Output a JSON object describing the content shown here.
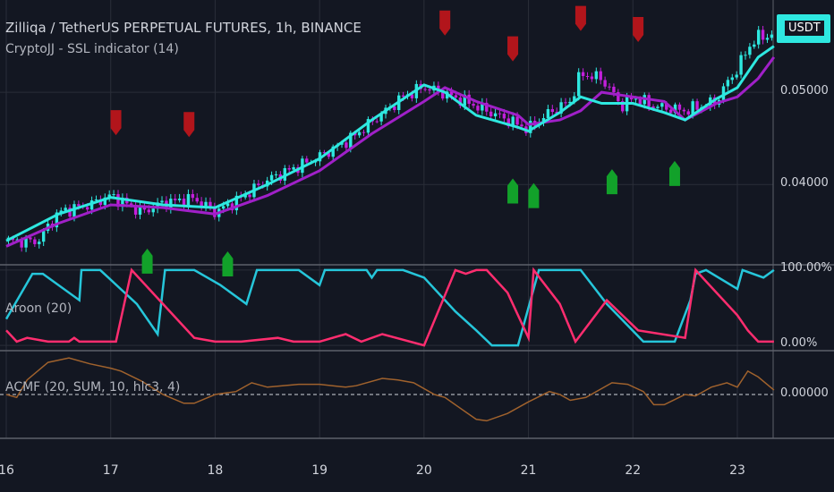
{
  "header": {
    "title": "Zilliqa / TetherUS PERPETUAL FUTURES, 1h, BINANCE",
    "indicator": "CryptoJJ - SSL indicator (14)",
    "price_tag": "USDT"
  },
  "panes": {
    "aroon_label": "Aroon (20)",
    "acmf_label": "ACMF (20, SUM, 10, hlc3, 4)"
  },
  "colors": {
    "background": "#131722",
    "candle_up": "#2ee8e0",
    "candle_down": "#c31fdb",
    "ssl_up": "#2ee8e0",
    "ssl_down": "#a020c8",
    "sell_marker": "#b2151b",
    "buy_marker": "#12a12a",
    "aroon_up": "#26c6da",
    "aroon_down": "#ff2d6f",
    "acmf": "#a0622d"
  },
  "chart_data": [
    {
      "type": "candlestick",
      "title": "Zilliqa / TetherUS PERPETUAL FUTURES, 1h, BINANCE",
      "x_tick_labels": [
        "16",
        "17",
        "18",
        "19",
        "20",
        "21",
        "22",
        "23"
      ],
      "xlim": [
        16.0,
        23.35
      ],
      "y_tick_labels": [
        "0.04000",
        "0.05000"
      ],
      "ylim": [
        0.0313,
        0.06
      ],
      "grid": true,
      "price_path": [
        [
          16.0,
          0.0339
        ],
        [
          16.3,
          0.0338
        ],
        [
          16.5,
          0.037
        ],
        [
          16.8,
          0.0378
        ],
        [
          17.0,
          0.0388
        ],
        [
          17.3,
          0.037
        ],
        [
          17.5,
          0.038
        ],
        [
          17.8,
          0.0385
        ],
        [
          18.0,
          0.037
        ],
        [
          18.2,
          0.0382
        ],
        [
          18.5,
          0.0405
        ],
        [
          18.8,
          0.042
        ],
        [
          19.0,
          0.043
        ],
        [
          19.3,
          0.045
        ],
        [
          19.5,
          0.0468
        ],
        [
          19.8,
          0.0495
        ],
        [
          20.0,
          0.0506
        ],
        [
          20.2,
          0.0498
        ],
        [
          20.4,
          0.049
        ],
        [
          20.7,
          0.0475
        ],
        [
          20.9,
          0.0465
        ],
        [
          21.0,
          0.046
        ],
        [
          21.2,
          0.0478
        ],
        [
          21.4,
          0.049
        ],
        [
          21.5,
          0.052
        ],
        [
          21.7,
          0.0515
        ],
        [
          21.9,
          0.0485
        ],
        [
          22.0,
          0.0495
        ],
        [
          22.2,
          0.0485
        ],
        [
          22.5,
          0.048
        ],
        [
          22.8,
          0.049
        ],
        [
          22.9,
          0.051
        ],
        [
          23.0,
          0.0525
        ],
        [
          23.1,
          0.0548
        ],
        [
          23.2,
          0.056
        ],
        [
          23.35,
          0.0562
        ]
      ],
      "ssl_up_path": [
        [
          16.0,
          0.0339
        ],
        [
          16.5,
          0.0368
        ],
        [
          17.0,
          0.0386
        ],
        [
          17.5,
          0.0378
        ],
        [
          18.0,
          0.0375
        ],
        [
          18.5,
          0.04
        ],
        [
          19.0,
          0.0428
        ],
        [
          19.5,
          0.047
        ],
        [
          20.0,
          0.0508
        ],
        [
          20.2,
          0.05
        ],
        [
          20.5,
          0.0475
        ],
        [
          20.9,
          0.0462
        ],
        [
          21.0,
          0.0458
        ],
        [
          21.3,
          0.0478
        ],
        [
          21.5,
          0.0495
        ],
        [
          21.7,
          0.0488
        ],
        [
          22.0,
          0.0488
        ],
        [
          22.3,
          0.0478
        ],
        [
          22.5,
          0.047
        ],
        [
          22.8,
          0.0493
        ],
        [
          23.0,
          0.0505
        ],
        [
          23.2,
          0.0538
        ],
        [
          23.35,
          0.055
        ]
      ],
      "ssl_down_path": [
        [
          16.0,
          0.0333
        ],
        [
          16.5,
          0.0358
        ],
        [
          17.0,
          0.0378
        ],
        [
          17.5,
          0.0375
        ],
        [
          18.0,
          0.0368
        ],
        [
          18.5,
          0.0388
        ],
        [
          19.0,
          0.0415
        ],
        [
          19.5,
          0.0455
        ],
        [
          20.0,
          0.049
        ],
        [
          20.2,
          0.0505
        ],
        [
          20.5,
          0.049
        ],
        [
          20.9,
          0.0475
        ],
        [
          21.0,
          0.0465
        ],
        [
          21.3,
          0.047
        ],
        [
          21.5,
          0.048
        ],
        [
          21.7,
          0.05
        ],
        [
          22.0,
          0.0495
        ],
        [
          22.3,
          0.049
        ],
        [
          22.5,
          0.047
        ],
        [
          22.8,
          0.0488
        ],
        [
          23.0,
          0.0495
        ],
        [
          23.2,
          0.0515
        ],
        [
          23.35,
          0.0538
        ]
      ],
      "sell_signals": [
        [
          17.05,
          0.0467
        ],
        [
          17.75,
          0.0465
        ],
        [
          20.2,
          0.0575
        ],
        [
          20.85,
          0.0547
        ],
        [
          21.5,
          0.058
        ],
        [
          22.05,
          0.0568
        ]
      ],
      "buy_signals": [
        [
          17.35,
          0.0317
        ],
        [
          18.12,
          0.0314
        ],
        [
          20.85,
          0.0393
        ],
        [
          21.05,
          0.0388
        ],
        [
          21.8,
          0.0403
        ],
        [
          22.4,
          0.0412
        ]
      ]
    },
    {
      "type": "line",
      "title": "Aroon (20)",
      "y_tick_labels": [
        "100.00%",
        "0.00%"
      ],
      "ylim": [
        -7,
        107
      ],
      "series": [
        {
          "color": "#26c6da",
          "points": [
            [
              16.0,
              35
            ],
            [
              16.25,
              95
            ],
            [
              16.35,
              95
            ],
            [
              16.7,
              60
            ],
            [
              16.72,
              100
            ],
            [
              16.9,
              100
            ],
            [
              17.25,
              55
            ],
            [
              17.45,
              15
            ],
            [
              17.52,
              100
            ],
            [
              17.8,
              100
            ],
            [
              18.05,
              80
            ],
            [
              18.3,
              55
            ],
            [
              18.4,
              100
            ],
            [
              18.8,
              100
            ],
            [
              19.0,
              80
            ],
            [
              19.05,
              100
            ],
            [
              19.45,
              100
            ],
            [
              19.5,
              90
            ],
            [
              19.55,
              100
            ],
            [
              19.8,
              100
            ],
            [
              20.0,
              90
            ],
            [
              20.3,
              45
            ],
            [
              20.5,
              20
            ],
            [
              20.65,
              0
            ],
            [
              20.9,
              0
            ],
            [
              21.1,
              100
            ],
            [
              21.5,
              100
            ],
            [
              21.75,
              55
            ],
            [
              22.1,
              5
            ],
            [
              22.4,
              5
            ],
            [
              22.55,
              60
            ],
            [
              22.6,
              95
            ],
            [
              22.7,
              100
            ],
            [
              23.0,
              75
            ],
            [
              23.05,
              100
            ],
            [
              23.25,
              90
            ],
            [
              23.35,
              100
            ]
          ]
        },
        {
          "color": "#ff2d6f",
          "points": [
            [
              16.0,
              20
            ],
            [
              16.1,
              5
            ],
            [
              16.2,
              10
            ],
            [
              16.4,
              5
            ],
            [
              16.6,
              5
            ],
            [
              16.65,
              10
            ],
            [
              16.7,
              5
            ],
            [
              17.05,
              5
            ],
            [
              17.2,
              100
            ],
            [
              17.6,
              40
            ],
            [
              17.8,
              10
            ],
            [
              18.0,
              5
            ],
            [
              18.25,
              5
            ],
            [
              18.6,
              10
            ],
            [
              18.75,
              5
            ],
            [
              19.0,
              5
            ],
            [
              19.25,
              15
            ],
            [
              19.4,
              5
            ],
            [
              19.6,
              15
            ],
            [
              20.0,
              0
            ],
            [
              20.3,
              100
            ],
            [
              20.4,
              95
            ],
            [
              20.5,
              100
            ],
            [
              20.6,
              100
            ],
            [
              20.8,
              70
            ],
            [
              21.0,
              10
            ],
            [
              21.05,
              100
            ],
            [
              21.3,
              55
            ],
            [
              21.45,
              5
            ],
            [
              21.75,
              60
            ],
            [
              22.05,
              20
            ],
            [
              22.5,
              10
            ],
            [
              22.6,
              100
            ],
            [
              23.0,
              40
            ],
            [
              23.1,
              20
            ],
            [
              23.2,
              5
            ],
            [
              23.35,
              5
            ]
          ]
        }
      ]
    },
    {
      "type": "line",
      "title": "ACMF (20, SUM, 10, hlc3, 4)",
      "y_tick_labels": [
        "0.00000"
      ],
      "ylim": [
        -1.5,
        1.5
      ],
      "series": [
        {
          "color": "#a0622d",
          "points": [
            [
              16.0,
              0.0
            ],
            [
              16.1,
              -0.1
            ],
            [
              16.2,
              0.5
            ],
            [
              16.4,
              1.1
            ],
            [
              16.6,
              1.25
            ],
            [
              16.8,
              1.05
            ],
            [
              17.0,
              0.9
            ],
            [
              17.1,
              0.8
            ],
            [
              17.3,
              0.45
            ],
            [
              17.5,
              0.0
            ],
            [
              17.7,
              -0.3
            ],
            [
              17.8,
              -0.3
            ],
            [
              18.0,
              0.0
            ],
            [
              18.2,
              0.1
            ],
            [
              18.35,
              0.4
            ],
            [
              18.5,
              0.25
            ],
            [
              18.8,
              0.35
            ],
            [
              19.0,
              0.35
            ],
            [
              19.25,
              0.25
            ],
            [
              19.35,
              0.3
            ],
            [
              19.6,
              0.55
            ],
            [
              19.75,
              0.5
            ],
            [
              19.9,
              0.4
            ],
            [
              20.1,
              0.0
            ],
            [
              20.2,
              -0.1
            ],
            [
              20.4,
              -0.6
            ],
            [
              20.5,
              -0.85
            ],
            [
              20.6,
              -0.9
            ],
            [
              20.8,
              -0.65
            ],
            [
              20.9,
              -0.45
            ],
            [
              21.0,
              -0.25
            ],
            [
              21.2,
              0.1
            ],
            [
              21.3,
              0.0
            ],
            [
              21.4,
              -0.2
            ],
            [
              21.55,
              -0.1
            ],
            [
              21.8,
              0.4
            ],
            [
              21.95,
              0.35
            ],
            [
              22.1,
              0.1
            ],
            [
              22.2,
              -0.35
            ],
            [
              22.3,
              -0.35
            ],
            [
              22.5,
              0.0
            ],
            [
              22.6,
              -0.05
            ],
            [
              22.75,
              0.25
            ],
            [
              22.9,
              0.4
            ],
            [
              23.0,
              0.25
            ],
            [
              23.1,
              0.8
            ],
            [
              23.2,
              0.6
            ],
            [
              23.35,
              0.15
            ]
          ]
        }
      ]
    }
  ]
}
